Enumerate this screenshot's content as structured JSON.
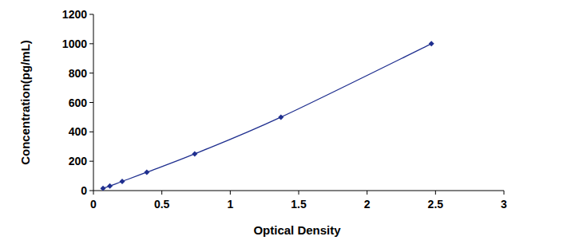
{
  "chart_data": {
    "type": "line",
    "x_label": "Optical Density",
    "y_label": "Concentration(pg/mL)",
    "x": [
      0.07,
      0.12,
      0.21,
      0.39,
      0.74,
      1.37,
      2.47
    ],
    "values": [
      15.6,
      31.2,
      62.5,
      125,
      250,
      500,
      1000
    ],
    "color": "#1f2f8f",
    "marker": "diamond",
    "line_style": "smooth",
    "xlim": [
      0,
      3
    ],
    "xticks": [
      0,
      0.5,
      1,
      1.5,
      2,
      2.5,
      3
    ],
    "ylim": [
      0,
      1200
    ],
    "yticks": [
      0,
      200,
      400,
      600,
      800,
      1000,
      1200
    ],
    "grid": false
  }
}
